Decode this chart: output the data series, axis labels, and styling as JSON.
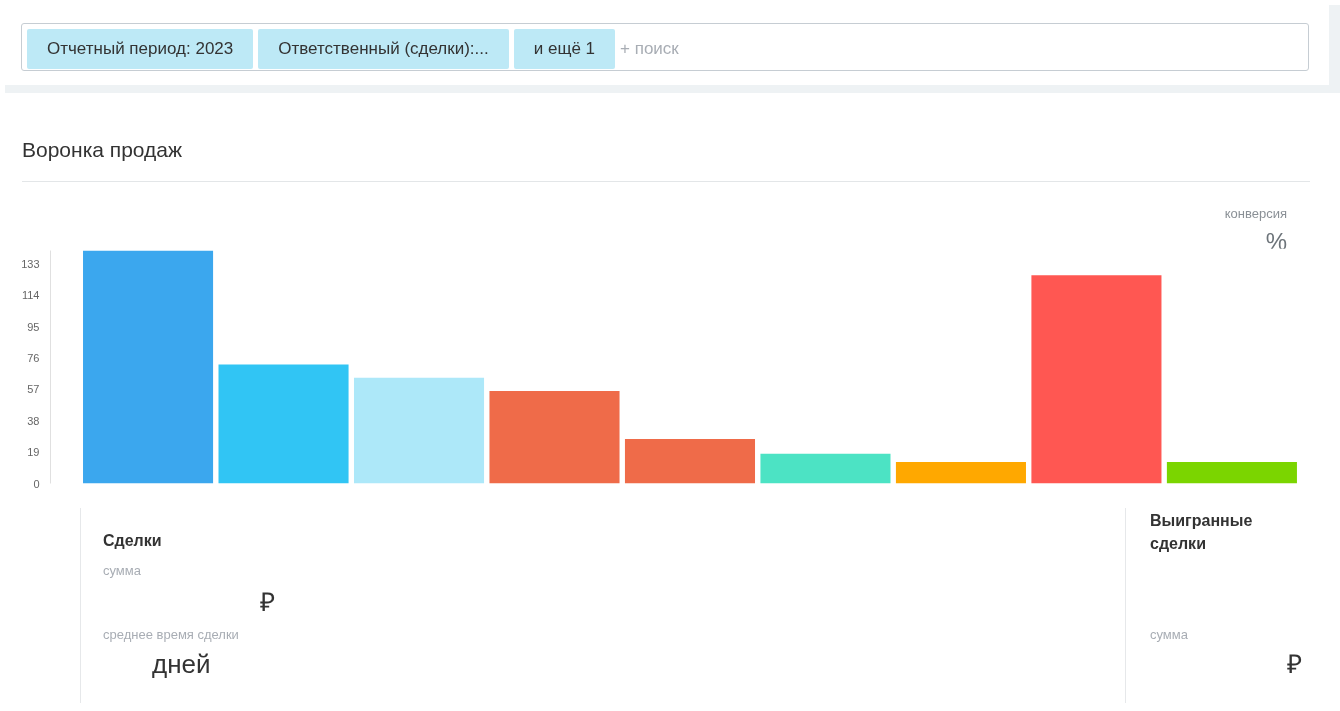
{
  "chart_data": {
    "type": "bar",
    "title": "Воронка продаж",
    "categories": [
      null,
      null,
      null,
      null,
      null,
      null,
      null,
      null,
      null
    ],
    "values": [
      141,
      72,
      64,
      56,
      27,
      18,
      13,
      126,
      13
    ],
    "colors": [
      "#3ba7ee",
      "#31c5f4",
      "#ade8f9",
      "#ef6b49",
      "#ef6b49",
      "#4ce3c4",
      "#ffa800",
      "#ff5752",
      "#7bd500"
    ],
    "ylim": [
      0,
      141
    ],
    "yticks": [
      0,
      19,
      38,
      57,
      76,
      95,
      114,
      133
    ],
    "grid": false,
    "tick_labels": "y",
    "annotations": [
      "Отчетный период: 2023",
      "Ответственный (сделки):...",
      "и ещё 1",
      "+ поиск",
      "конверсия",
      "%",
      "Сделки",
      "сумма",
      "₽",
      "среднее время сделки",
      "дней",
      "Выигранные сделки",
      "сумма",
      "₽"
    ]
  }
}
